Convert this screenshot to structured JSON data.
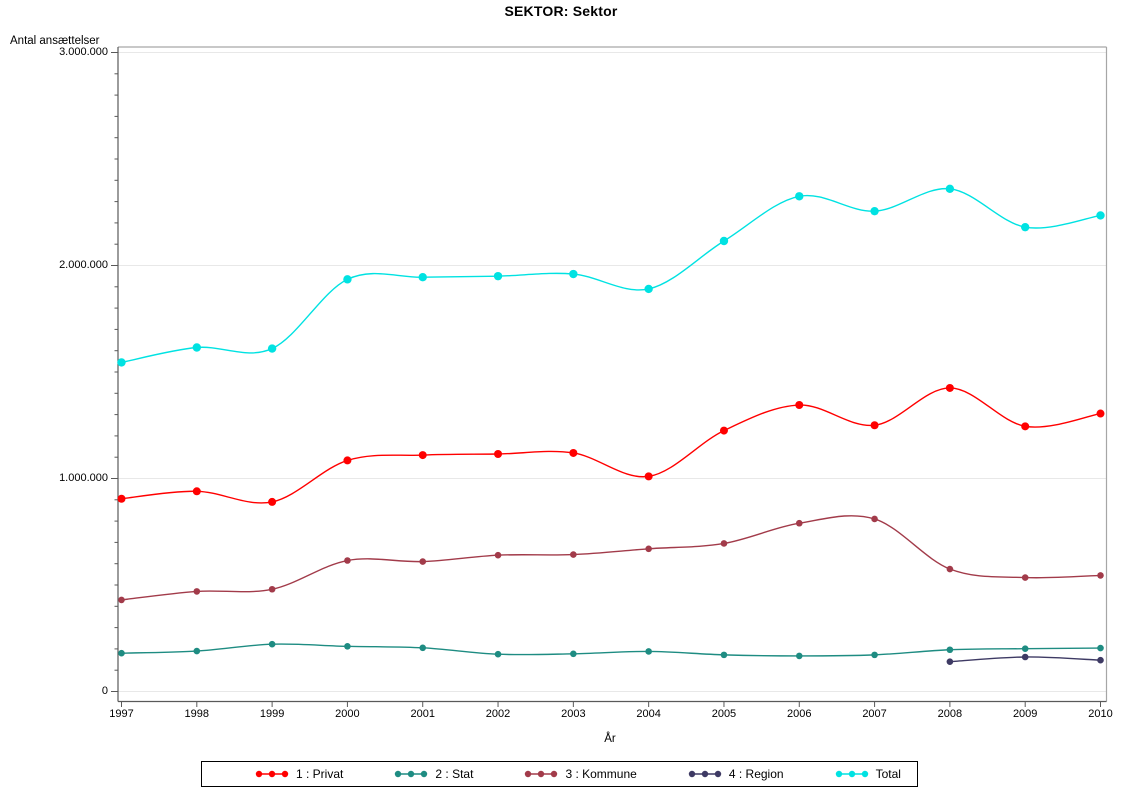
{
  "page": {
    "background": "#FFFFFF"
  },
  "chart_data": {
    "type": "line",
    "title": "SEKTOR: Sektor",
    "xlabel": "År",
    "ylabel": "Antal ansættelser",
    "x": [
      1997,
      1998,
      1999,
      2000,
      2001,
      2002,
      2003,
      2004,
      2005,
      2006,
      2007,
      2008,
      2009,
      2010
    ],
    "ylim": [
      0,
      3000000
    ],
    "yticks": [
      0,
      1000000,
      2000000,
      3000000
    ],
    "ytick_labels": [
      "0",
      "1.000.000",
      "2.000.000",
      "3.000.000"
    ],
    "y_minor_tick_step": 100000,
    "grid": "horizontal lines at major y ticks",
    "legend_position": "bottom boxed",
    "curve": "smooth spline through points",
    "series": [
      {
        "name": "1 : Privat",
        "color": "#FF0000",
        "values": [
          905000,
          940000,
          890000,
          1085000,
          1110000,
          1115000,
          1120000,
          1010000,
          1225000,
          1345000,
          1250000,
          1425000,
          1245000,
          1305000
        ]
      },
      {
        "name": "2 : Stat",
        "color": "#1E8C82",
        "values": [
          180000,
          190000,
          222000,
          212000,
          205000,
          175000,
          177000,
          188000,
          172000,
          167000,
          172000,
          196000,
          201000,
          204000
        ]
      },
      {
        "name": "3 : Kommune",
        "color": "#A23B4A",
        "values": [
          430000,
          470000,
          480000,
          615000,
          610000,
          640000,
          643000,
          670000,
          695000,
          790000,
          810000,
          575000,
          535000,
          545000
        ]
      },
      {
        "name": "4 : Region",
        "color": "#3E3A64",
        "values": [
          null,
          null,
          null,
          null,
          null,
          null,
          null,
          null,
          null,
          null,
          null,
          140000,
          162000,
          147000
        ]
      },
      {
        "name": "Total",
        "color": "#00E2E2",
        "values": [
          1545000,
          1615000,
          1610000,
          1935000,
          1945000,
          1950000,
          1960000,
          1890000,
          2115000,
          2325000,
          2255000,
          2360000,
          2180000,
          2235000
        ]
      }
    ]
  },
  "colors": {
    "grid": "#E8E8E8",
    "frame_light": "#A6A6A6",
    "axis_dark": "#595959",
    "text": "#000000",
    "legend_border": "#000000"
  }
}
